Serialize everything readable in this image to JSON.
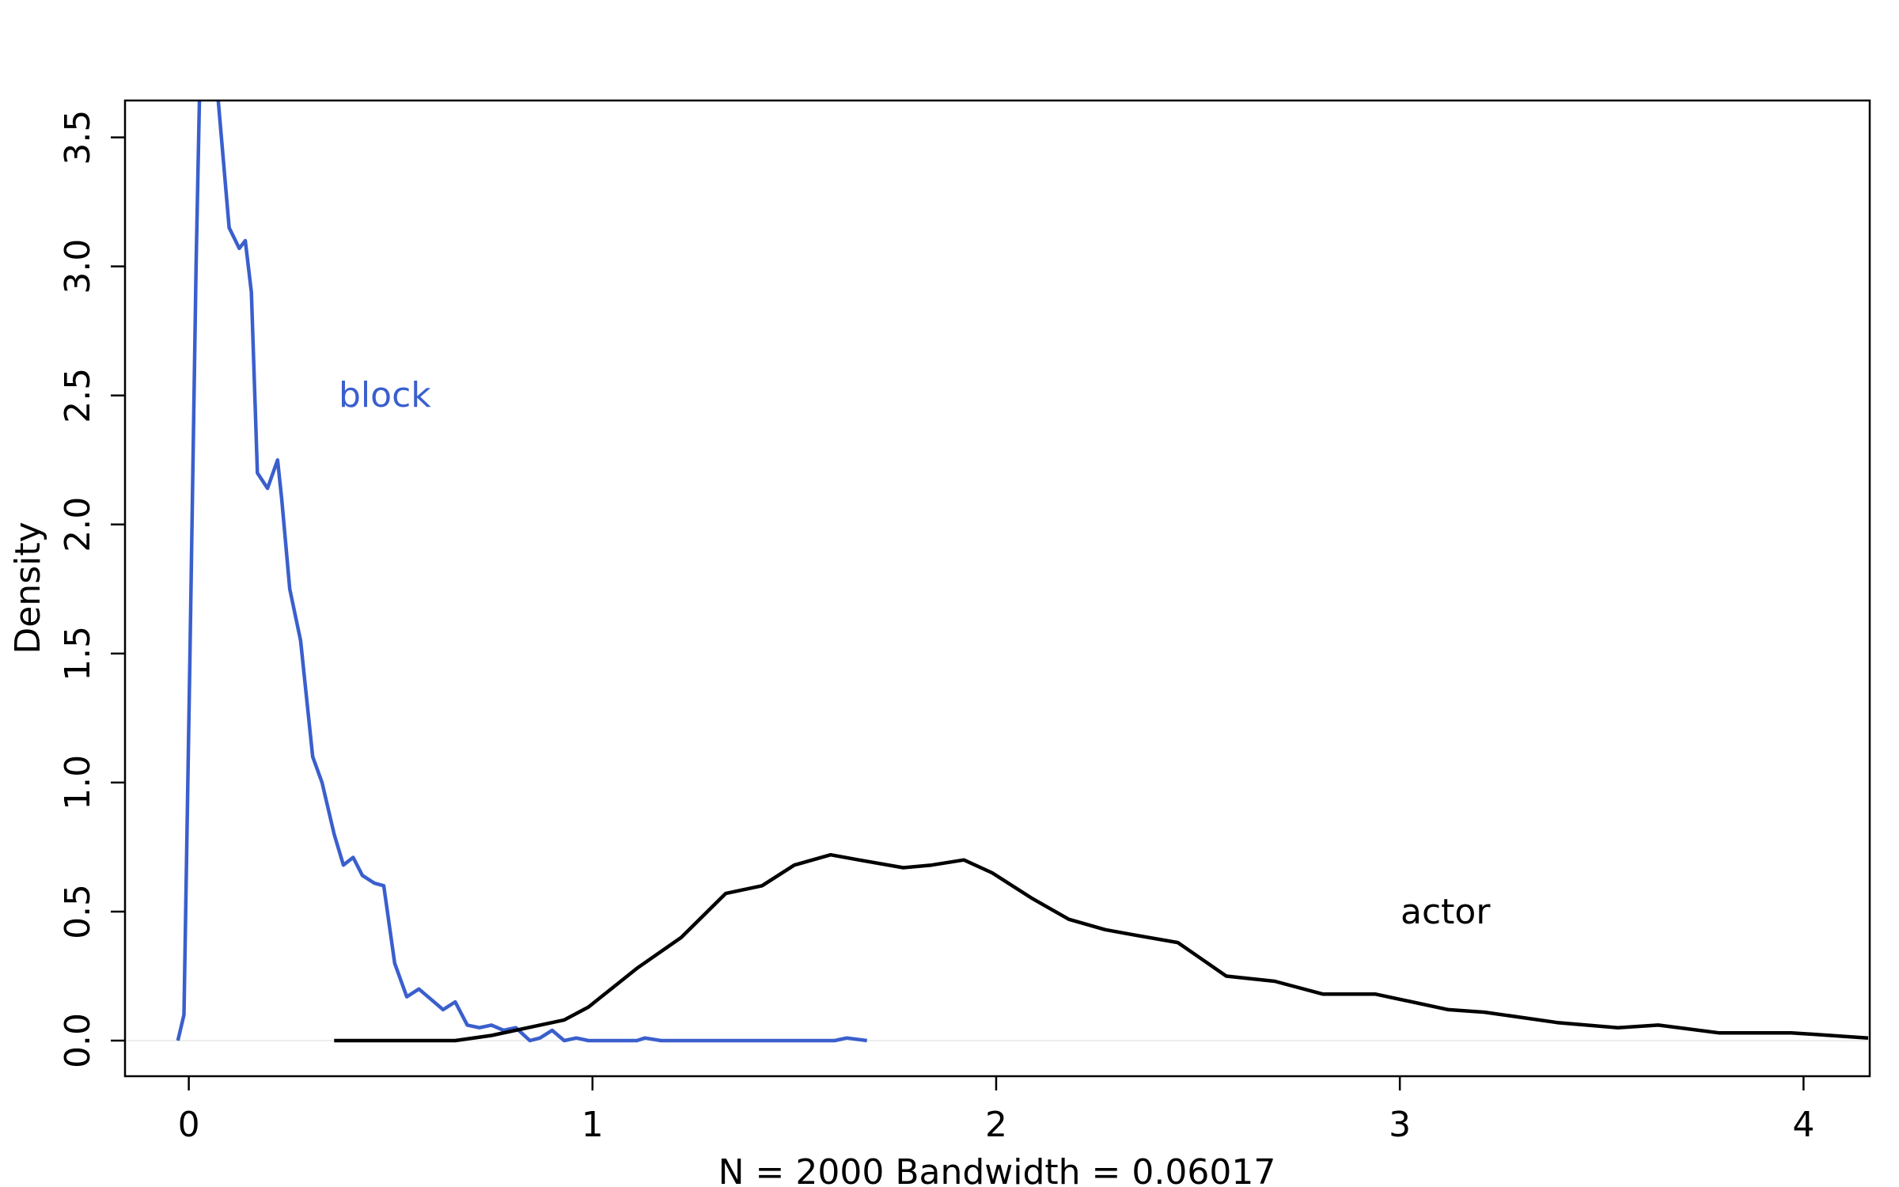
{
  "chart_data": {
    "type": "line",
    "x_label": "N = 2000   Bandwidth = 0.06017",
    "y_label": "Density",
    "xlim": [
      -0.158,
      4.164
    ],
    "ylim": [
      -0.138,
      3.643
    ],
    "xticks": [
      0,
      1,
      2,
      3,
      4
    ],
    "yticks": [
      {
        "value": 0,
        "label": "0.0"
      },
      0.5,
      {
        "value": 1,
        "label": "1.0"
      },
      1.5,
      {
        "value": 2,
        "label": "2.0"
      },
      2.5,
      {
        "value": 3,
        "label": "3.0"
      },
      3.5
    ],
    "series": [
      {
        "name": "block",
        "color": "#3a5fcd",
        "x": [
          -0.027,
          -0.012,
          0.003,
          0.018,
          0.027,
          0.05,
          0.073,
          0.1,
          0.125,
          0.14,
          0.155,
          0.17,
          0.195,
          0.22,
          0.23,
          0.25,
          0.277,
          0.307,
          0.33,
          0.36,
          0.383,
          0.407,
          0.43,
          0.46,
          0.483,
          0.51,
          0.54,
          0.57,
          0.6,
          0.63,
          0.66,
          0.69,
          0.72,
          0.75,
          0.78,
          0.81,
          0.845,
          0.87,
          0.9,
          0.93,
          0.96,
          0.99,
          1.11,
          1.13,
          1.17,
          1.6,
          1.63,
          1.68
        ],
        "values": [
          0,
          0.1,
          1.5,
          3.0,
          3.7,
          4.2,
          3.64,
          3.15,
          3.07,
          3.1,
          2.9,
          2.2,
          2.14,
          2.25,
          2.1,
          1.75,
          1.55,
          1.1,
          1.0,
          0.8,
          0.68,
          0.71,
          0.64,
          0.61,
          0.6,
          0.3,
          0.17,
          0.2,
          0.16,
          0.12,
          0.15,
          0.06,
          0.05,
          0.06,
          0.04,
          0.05,
          0.0,
          0.01,
          0.04,
          0.0,
          0.01,
          0.0,
          0.0,
          0.01,
          0.0,
          0.0,
          0.01,
          0.0
        ]
      },
      {
        "name": "actor",
        "color": "#000000",
        "x": [
          0.36,
          0.66,
          0.75,
          0.84,
          0.93,
          0.99,
          1.11,
          1.22,
          1.33,
          1.42,
          1.5,
          1.59,
          1.66,
          1.77,
          1.84,
          1.92,
          1.99,
          2.09,
          2.18,
          2.27,
          2.34,
          2.45,
          2.57,
          2.69,
          2.81,
          2.94,
          3.12,
          3.21,
          3.39,
          3.54,
          3.64,
          3.79,
          3.97,
          4.16
        ],
        "values": [
          0,
          0.0,
          0.02,
          0.05,
          0.08,
          0.13,
          0.28,
          0.4,
          0.57,
          0.6,
          0.68,
          0.72,
          0.7,
          0.67,
          0.68,
          0.7,
          0.65,
          0.55,
          0.47,
          0.43,
          0.41,
          0.38,
          0.25,
          0.23,
          0.18,
          0.18,
          0.12,
          0.11,
          0.07,
          0.05,
          0.06,
          0.03,
          0.03,
          0.01
        ]
      }
    ]
  }
}
